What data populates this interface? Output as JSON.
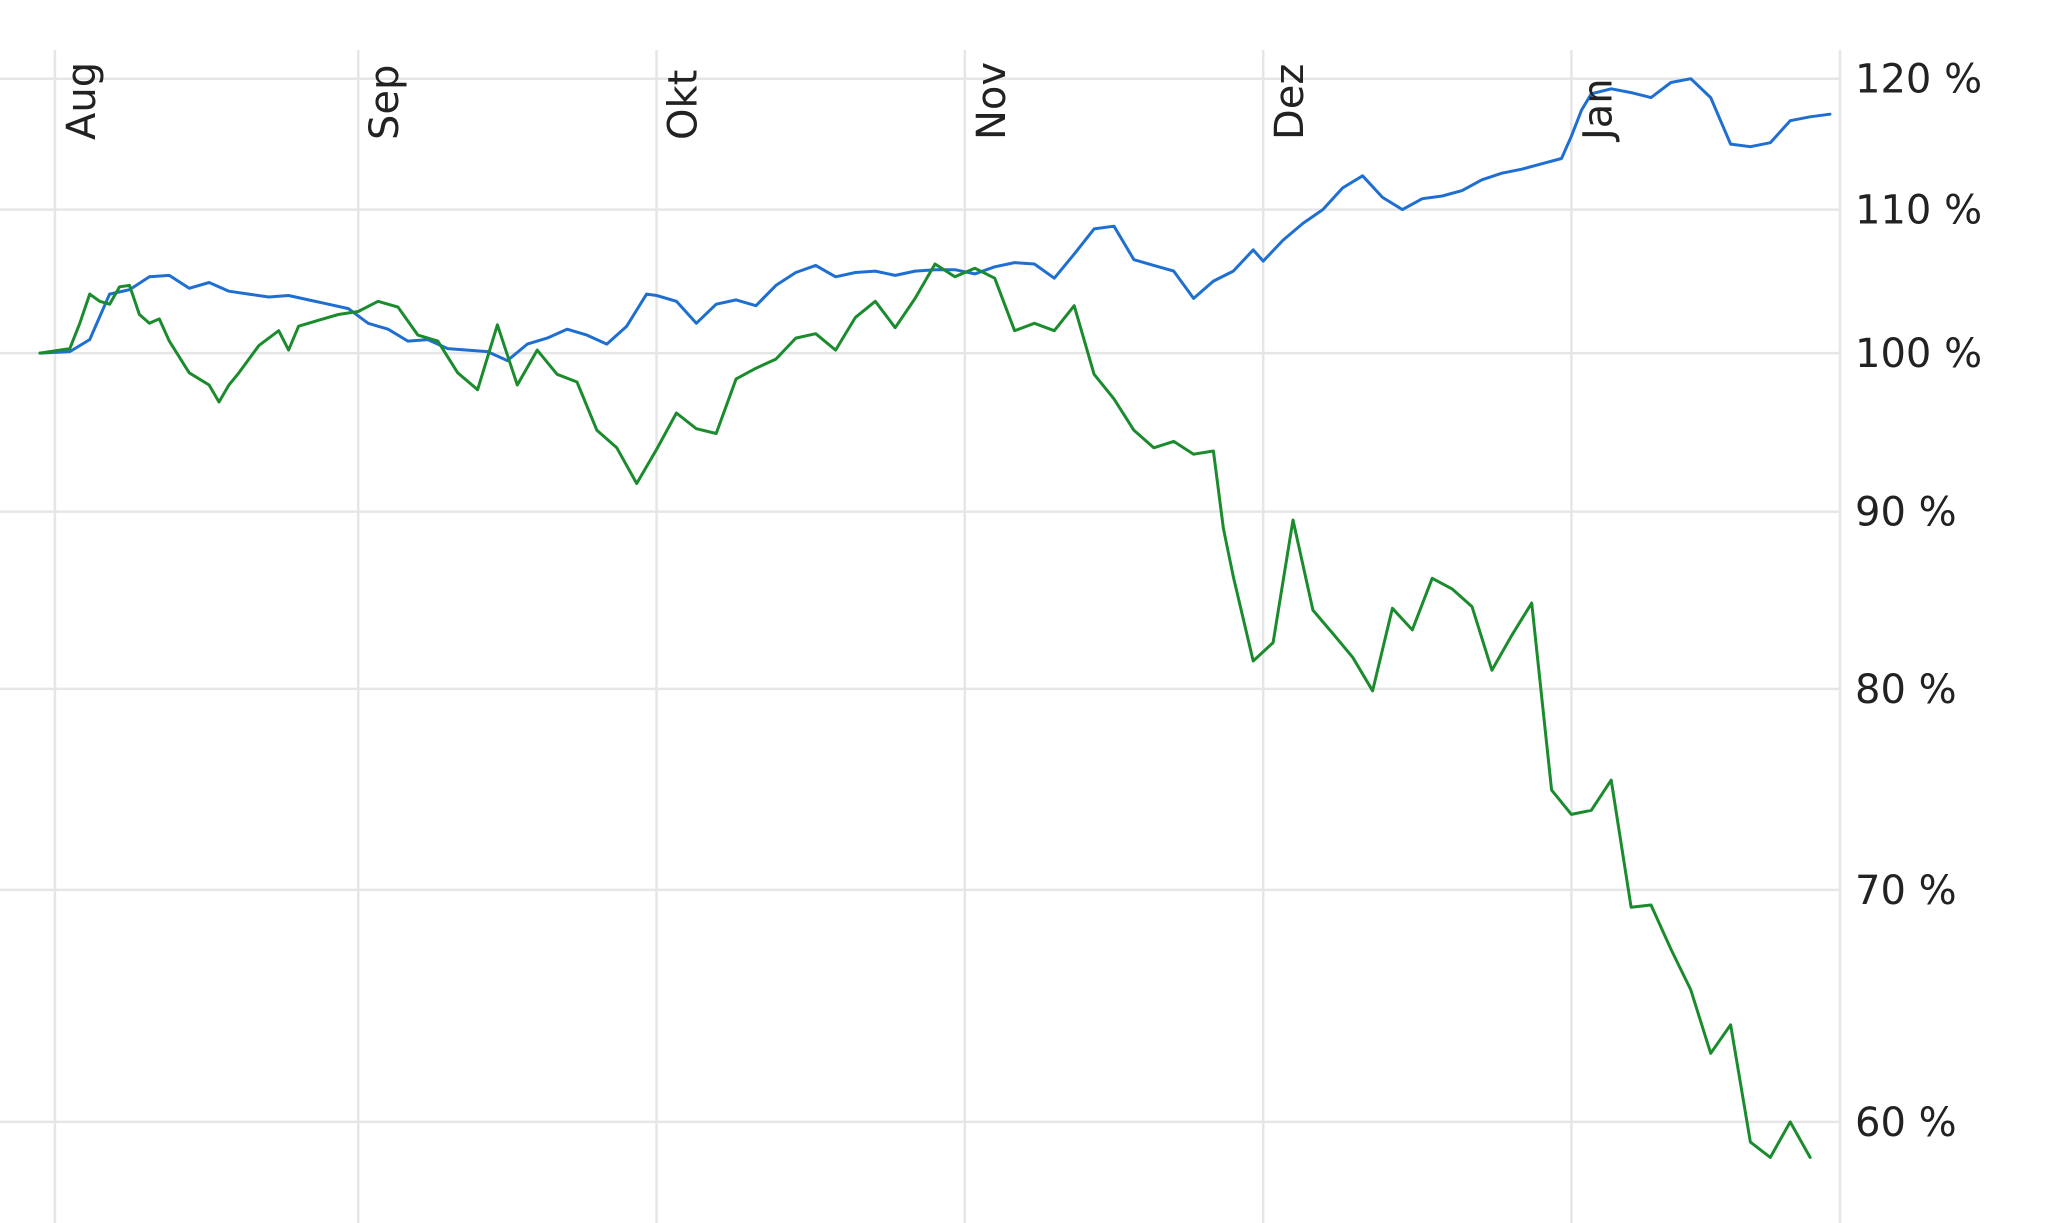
{
  "chart_data": {
    "type": "line",
    "x_tick_labels": [
      "Aug",
      "Sep",
      "Okt",
      "Nov",
      "Dez",
      "Jan"
    ],
    "y_ticks": [
      60,
      70,
      80,
      90,
      100,
      110,
      120
    ],
    "y_tick_labels": [
      "60 %",
      "70 %",
      "80 %",
      "90 %",
      "100 %",
      "110 %",
      "120 %"
    ],
    "y_scale": "log",
    "ylim": [
      58.5,
      121.5
    ],
    "xlim": [
      0,
      180
    ],
    "x_month_positions": [
      1.5,
      32,
      62,
      93,
      123,
      154
    ],
    "grid": true,
    "y_axis_position": "right",
    "x_label_placement": "top-rotated",
    "series": [
      {
        "color": "#1f6fd1",
        "x": [
          0,
          3,
          5,
          7,
          9,
          11,
          13,
          15,
          17,
          19,
          21,
          23,
          25,
          27,
          29,
          31,
          33,
          35,
          37,
          39,
          41,
          43,
          45,
          47,
          49,
          51,
          53,
          55,
          57,
          59,
          61,
          62,
          64,
          66,
          68,
          70,
          72,
          74,
          76,
          78,
          80,
          82,
          84,
          86,
          88,
          90,
          92,
          94,
          96,
          98,
          100,
          102,
          104,
          106,
          108,
          110,
          112,
          114,
          116,
          118,
          120,
          122,
          123,
          125,
          127,
          129,
          131,
          133,
          135,
          137,
          139,
          141,
          143,
          145,
          147,
          149,
          151,
          153,
          154,
          155,
          156,
          158,
          160,
          162,
          164,
          166,
          168,
          170,
          172,
          174,
          176,
          178,
          180
        ],
        "values": [
          100,
          100.1,
          100.9,
          104,
          104.3,
          105.2,
          105.3,
          104.4,
          104.8,
          104.2,
          104.0,
          103.8,
          103.9,
          103.6,
          103.3,
          103.0,
          102.0,
          101.6,
          100.8,
          100.9,
          100.3,
          100.2,
          100.1,
          99.5,
          100.6,
          101.0,
          101.6,
          101.2,
          100.6,
          101.8,
          104.0,
          103.9,
          103.5,
          102.0,
          103.3,
          103.6,
          103.2,
          104.6,
          105.5,
          106.0,
          105.2,
          105.5,
          105.6,
          105.3,
          105.6,
          105.7,
          105.7,
          105.4,
          105.9,
          106.2,
          106.1,
          105.1,
          106.8,
          108.6,
          108.8,
          106.4,
          106.0,
          105.6,
          103.7,
          104.9,
          105.6,
          107.1,
          106.3,
          107.8,
          109.0,
          110.0,
          111.6,
          112.5,
          110.9,
          110.0,
          110.8,
          111.0,
          111.4,
          112.2,
          112.7,
          113.0,
          113.4,
          113.8,
          115.5,
          117.5,
          118.8,
          119.2,
          118.9,
          118.5,
          119.7,
          120.0,
          118.5,
          114.9,
          114.7,
          115.0,
          116.7,
          117.0,
          117.2
        ]
      },
      {
        "color": "#1b8c2e",
        "x": [
          0,
          3,
          4,
          5,
          6,
          7,
          8,
          9,
          10,
          11,
          12,
          13,
          15,
          17,
          18,
          19,
          20,
          22,
          24,
          25,
          26,
          28,
          30,
          32,
          34,
          36,
          38,
          40,
          42,
          44,
          46,
          48,
          50,
          52,
          54,
          56,
          58,
          60,
          62,
          64,
          66,
          68,
          70,
          72,
          74,
          76,
          78,
          80,
          82,
          84,
          86,
          88,
          90,
          92,
          94,
          96,
          98,
          100,
          102,
          104,
          106,
          108,
          110,
          112,
          114,
          116,
          118,
          119,
          120,
          122,
          124,
          126,
          128,
          130,
          132,
          134,
          136,
          138,
          140,
          142,
          144,
          146,
          148,
          150,
          152,
          154,
          156,
          158,
          160,
          162,
          164,
          166,
          168,
          170,
          172,
          174,
          176,
          178
        ],
        "values": [
          100,
          100.3,
          102,
          104,
          103.5,
          103.3,
          104.5,
          104.6,
          102.6,
          102.0,
          102.3,
          100.8,
          98.7,
          97.9,
          96.8,
          97.9,
          98.7,
          100.5,
          101.5,
          100.2,
          101.8,
          102.2,
          102.6,
          102.8,
          103.5,
          103.1,
          101.2,
          100.8,
          98.7,
          97.6,
          101.9,
          97.9,
          100.2,
          98.6,
          98.1,
          95.0,
          93.9,
          91.7,
          93.8,
          96.1,
          95.1,
          94.8,
          98.3,
          99.0,
          99.6,
          101.0,
          101.3,
          100.2,
          102.4,
          103.5,
          101.7,
          103.7,
          106.1,
          105.2,
          105.8,
          105.1,
          101.5,
          102.0,
          101.5,
          103.2,
          98.6,
          97.0,
          95.0,
          93.9,
          94.3,
          93.5,
          93.7,
          89.0,
          86.2,
          81.5,
          82.5,
          89.5,
          84.3,
          83.0,
          81.7,
          79.9,
          84.4,
          83.2,
          86.1,
          85.5,
          84.5,
          81.0,
          82.9,
          84.7,
          74.8,
          73.6,
          73.8,
          75.3,
          69.2,
          69.3,
          67.3,
          65.5,
          62.8,
          64.0,
          59.2,
          58.6,
          60.0,
          58.6
        ]
      }
    ]
  }
}
